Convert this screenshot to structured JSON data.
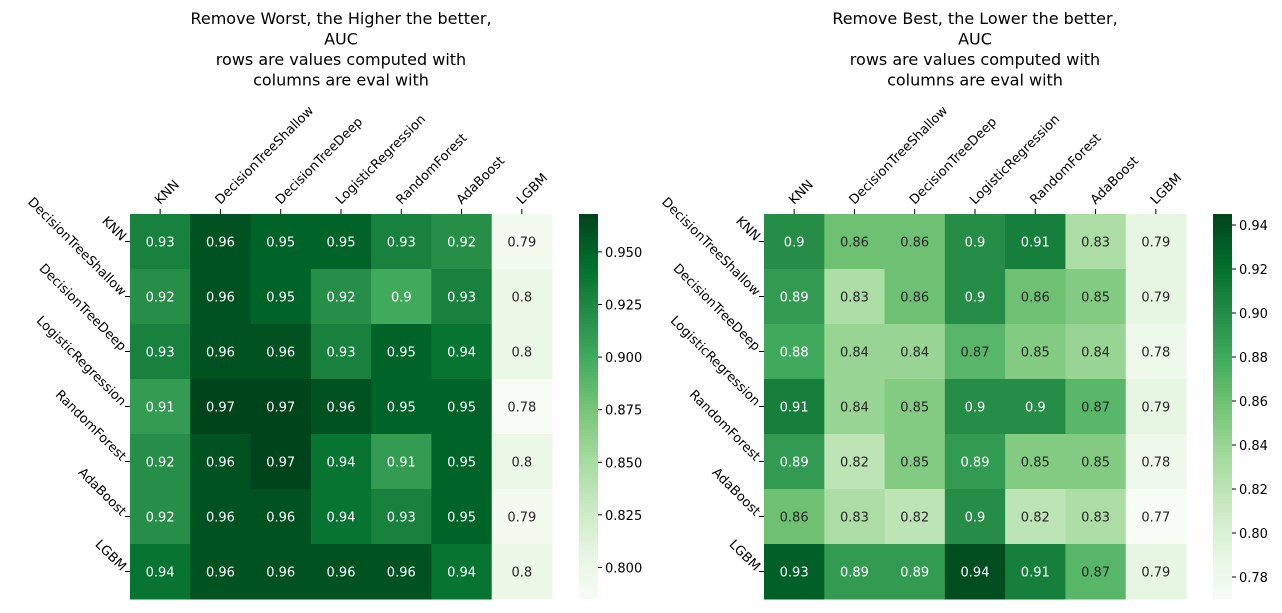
{
  "chart_data": [
    {
      "type": "heatmap",
      "title": [
        "Remove Worst, the Higher the better,",
        "AUC",
        "rows are values computed with",
        "columns are eval with"
      ],
      "x_labels": [
        "KNN",
        "DecisionTreeShallow",
        "DecisionTreeDeep",
        "LogisticRegression",
        "RandomForest",
        "AdaBoost",
        "LGBM"
      ],
      "y_labels": [
        "KNN",
        "DecisionTreeShallow",
        "DecisionTreeDeep",
        "LogisticRegression",
        "RandomForest",
        "AdaBoost",
        "LGBM"
      ],
      "values": [
        [
          0.93,
          0.96,
          0.95,
          0.95,
          0.93,
          0.92,
          0.79
        ],
        [
          0.92,
          0.96,
          0.95,
          0.92,
          0.9,
          0.93,
          0.8
        ],
        [
          0.93,
          0.96,
          0.96,
          0.93,
          0.95,
          0.94,
          0.8
        ],
        [
          0.91,
          0.97,
          0.97,
          0.96,
          0.95,
          0.95,
          0.78
        ],
        [
          0.92,
          0.96,
          0.97,
          0.94,
          0.91,
          0.95,
          0.8
        ],
        [
          0.92,
          0.96,
          0.96,
          0.94,
          0.93,
          0.95,
          0.79
        ],
        [
          0.94,
          0.96,
          0.96,
          0.96,
          0.96,
          0.94,
          0.8
        ]
      ],
      "value_labels": [
        [
          "0.93",
          "0.96",
          "0.95",
          "0.95",
          "0.93",
          "0.92",
          "0.79"
        ],
        [
          "0.92",
          "0.96",
          "0.95",
          "0.92",
          "0.9",
          "0.93",
          "0.8"
        ],
        [
          "0.93",
          "0.96",
          "0.96",
          "0.93",
          "0.95",
          "0.94",
          "0.8"
        ],
        [
          "0.91",
          "0.97",
          "0.97",
          "0.96",
          "0.95",
          "0.95",
          "0.78"
        ],
        [
          "0.92",
          "0.96",
          "0.97",
          "0.94",
          "0.91",
          "0.95",
          "0.8"
        ],
        [
          "0.92",
          "0.96",
          "0.96",
          "0.94",
          "0.93",
          "0.95",
          "0.79"
        ],
        [
          "0.94",
          "0.96",
          "0.96",
          "0.96",
          "0.96",
          "0.94",
          "0.8"
        ]
      ],
      "colormap": "Greens",
      "x_tick_position": "top",
      "color_range": [
        0.785,
        0.968
      ],
      "colorbar": {
        "ticks": [
          "0.800",
          "0.825",
          "0.850",
          "0.875",
          "0.900",
          "0.925",
          "0.950"
        ],
        "range": [
          0.785,
          0.968
        ]
      }
    },
    {
      "type": "heatmap",
      "title": [
        "Remove Best, the Lower the better,",
        "AUC",
        "rows are values computed with",
        "columns are eval with"
      ],
      "x_labels": [
        "KNN",
        "DecisionTreeShallow",
        "DecisionTreeDeep",
        "LogisticRegression",
        "RandomForest",
        "AdaBoost",
        "LGBM"
      ],
      "y_labels": [
        "KNN",
        "DecisionTreeShallow",
        "DecisionTreeDeep",
        "LogisticRegression",
        "RandomForest",
        "AdaBoost",
        "LGBM"
      ],
      "values": [
        [
          0.9,
          0.86,
          0.86,
          0.9,
          0.91,
          0.83,
          0.79
        ],
        [
          0.89,
          0.83,
          0.86,
          0.9,
          0.86,
          0.85,
          0.79
        ],
        [
          0.88,
          0.84,
          0.84,
          0.87,
          0.85,
          0.84,
          0.78
        ],
        [
          0.91,
          0.84,
          0.85,
          0.9,
          0.9,
          0.87,
          0.79
        ],
        [
          0.89,
          0.82,
          0.85,
          0.89,
          0.85,
          0.85,
          0.78
        ],
        [
          0.86,
          0.83,
          0.82,
          0.9,
          0.82,
          0.83,
          0.77
        ],
        [
          0.93,
          0.89,
          0.89,
          0.94,
          0.91,
          0.87,
          0.79
        ]
      ],
      "value_labels": [
        [
          "0.9",
          "0.86",
          "0.86",
          "0.9",
          "0.91",
          "0.83",
          "0.79"
        ],
        [
          "0.89",
          "0.83",
          "0.86",
          "0.9",
          "0.86",
          "0.85",
          "0.79"
        ],
        [
          "0.88",
          "0.84",
          "0.84",
          "0.87",
          "0.85",
          "0.84",
          "0.78"
        ],
        [
          "0.91",
          "0.84",
          "0.85",
          "0.9",
          "0.9",
          "0.87",
          "0.79"
        ],
        [
          "0.89",
          "0.82",
          "0.85",
          "0.89",
          "0.85",
          "0.85",
          "0.78"
        ],
        [
          "0.86",
          "0.83",
          "0.82",
          "0.9",
          "0.82",
          "0.83",
          "0.77"
        ],
        [
          "0.93",
          "0.89",
          "0.89",
          "0.94",
          "0.91",
          "0.87",
          "0.79"
        ]
      ],
      "colormap": "Greens",
      "x_tick_position": "top",
      "color_range": [
        0.77,
        0.945
      ],
      "colorbar": {
        "ticks": [
          "0.78",
          "0.80",
          "0.82",
          "0.84",
          "0.86",
          "0.88",
          "0.90",
          "0.92",
          "0.94"
        ],
        "range": [
          0.77,
          0.945
        ]
      }
    }
  ]
}
